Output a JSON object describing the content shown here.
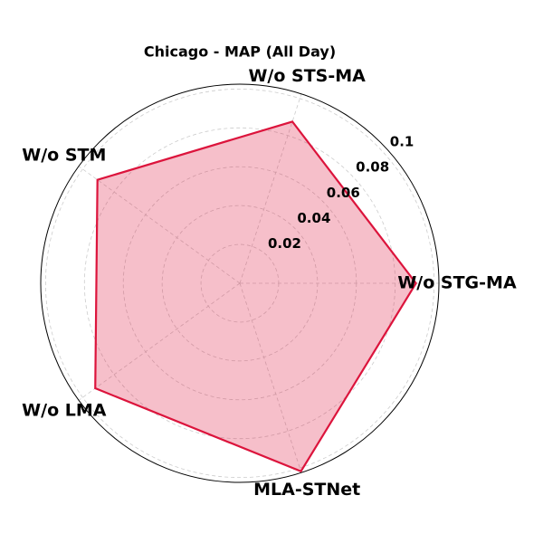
{
  "chart_data": {
    "type": "radar",
    "title": "Chicago - MAP (All Day)",
    "categories": [
      "W/o STG-MA",
      "W/o STS-MA",
      "W/o STM",
      "W/o LMA",
      "MLA-STNet"
    ],
    "series": [
      {
        "name": "MAP",
        "color": "#dc143c",
        "values": [
          0.0907,
          0.0875,
          0.0906,
          0.092,
          0.1018
        ]
      }
    ],
    "ylim": [
      0,
      0.1025
    ],
    "yticks": [
      0.02,
      0.04,
      0.06,
      0.08,
      0.1
    ],
    "grid": true
  }
}
